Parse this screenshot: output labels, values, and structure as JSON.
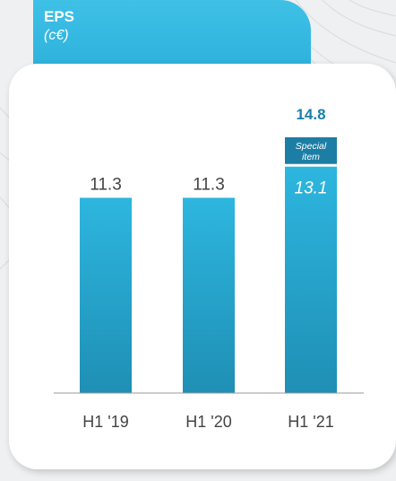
{
  "header": {
    "title": "EPS",
    "subtitle": "(c€)"
  },
  "colors": {
    "bar_top": "#2db6df",
    "bar_bottom": "#1f8fb5",
    "special_segment": "#1c7ea4",
    "special_total_label": "#1b7fa8",
    "tab": "#2aaedb",
    "axis": "#9a9a9a",
    "value_label": "#444444"
  },
  "chart_data": {
    "type": "bar",
    "title": "EPS",
    "subtitle": "(c€)",
    "categories": [
      "H1 '19",
      "H1 '20",
      "H1 '21"
    ],
    "series": [
      {
        "values": [
          11.3,
          11.3,
          13.1
        ]
      },
      {
        "name": "Special item",
        "values": [
          0,
          0,
          1.7
        ]
      }
    ],
    "value_labels": [
      "11.3",
      "11.3",
      "13.1"
    ],
    "total_labels": [
      "",
      "",
      "14.8"
    ],
    "segment_labels": [
      "",
      "",
      "Special item"
    ],
    "ylim": [
      0,
      17.5
    ],
    "xlabel": "",
    "ylabel": "",
    "grid": false,
    "legend": "none"
  }
}
